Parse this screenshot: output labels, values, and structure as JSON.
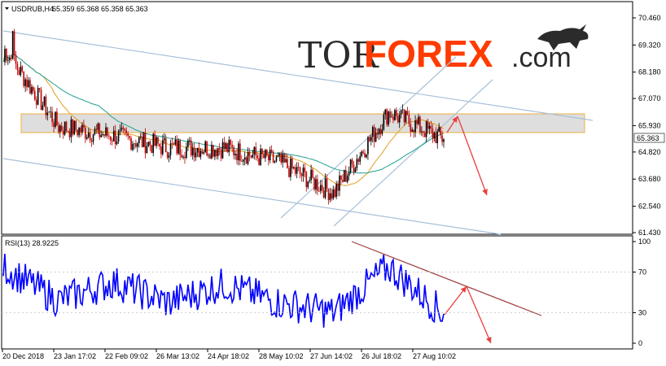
{
  "header": {
    "symbol": "USDRUB,H4",
    "ohlc": "65.359 65.368 65.358 65.363"
  },
  "logo": {
    "part1": "TOR",
    "part2": "FOREX",
    "part3": ".com",
    "icon": "bull-icon"
  },
  "price_axis": {
    "ticks": [
      "70.460",
      "69.320",
      "68.180",
      "67.070",
      "65.930",
      "64.820",
      "63.680",
      "62.540",
      "61.430"
    ],
    "current_price": "65.363"
  },
  "rsi": {
    "label": "RSI(13) 28.9225",
    "ticks": [
      "100",
      "70",
      "30",
      "0"
    ]
  },
  "time_axis": {
    "labels": [
      "20 Dec 2018",
      "23 Jan 17:02",
      "22 Feb 09:02",
      "26 Mar 13:02",
      "24 Apr 18:02",
      "28 May 10:02",
      "27 Jun 14:02",
      "26 Jul 18:02",
      "27 Aug 10:02"
    ]
  },
  "colors": {
    "candles": "#000000",
    "down_candles": "#c00000",
    "ma_fast": "#e0a020",
    "ma_slow": "#20a090",
    "channel": "#a8c0d8",
    "zone": "#d8d8d8",
    "zone_border": "#f0b040",
    "arrow": "#e84040",
    "rsi_line": "#0000ff",
    "rsi_trend": "#a04040"
  },
  "chart_data": {
    "type": "line",
    "title": "USDRUB,H4",
    "series": [
      {
        "name": "USDRUB",
        "x": [
          "20 Dec 2018",
          "23 Jan 17:02",
          "22 Feb 09:02",
          "26 Mar 13:02",
          "24 Apr 18:02",
          "28 May 10:02",
          "27 Jun 14:02",
          "26 Jul 18:02",
          "27 Aug 10:02"
        ],
        "values": [
          69.2,
          65.9,
          65.5,
          65.0,
          65.0,
          64.4,
          63.1,
          66.5,
          65.36
        ]
      },
      {
        "name": "RSI(13)",
        "x": [
          "20 Dec 2018",
          "23 Jan 17:02",
          "22 Feb 09:02",
          "26 Mar 13:02",
          "24 Apr 18:02",
          "28 May 10:02",
          "27 Jun 14:02",
          "26 Jul 18:02",
          "27 Aug 10:02"
        ],
        "values": [
          75,
          42,
          60,
          40,
          58,
          40,
          30,
          75,
          29
        ]
      }
    ],
    "ylim": [
      61.43,
      70.46
    ],
    "rsi_range": [
      0,
      100
    ],
    "xlabel": "",
    "ylabel": ""
  }
}
